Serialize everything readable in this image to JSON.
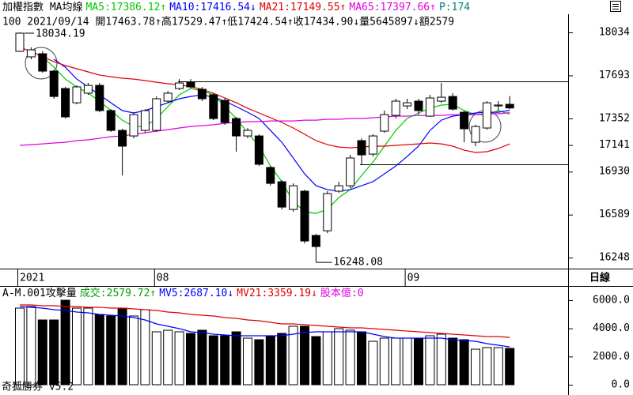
{
  "chart_data": [
    {
      "type": "candlestick",
      "title": "加權指數 MA均線",
      "info": "100 2021/09/14 開17463.78↑高17529.47↑低17424.54↑收17434.90↓量5645897↓額2579",
      "price_label": "P:174",
      "period": "日線",
      "categories": [
        "2021",
        null,
        null,
        null,
        null,
        null,
        null,
        null,
        null,
        null,
        null,
        null,
        "08",
        null,
        null,
        null,
        null,
        null,
        null,
        null,
        null,
        null,
        null,
        null,
        null,
        null,
        null,
        null,
        null,
        null,
        null,
        null,
        null,
        null,
        "09",
        null,
        null,
        null,
        null,
        null,
        null,
        null,
        null,
        null
      ],
      "open": [
        17884,
        17840,
        17865,
        17727,
        17589,
        17476,
        17552,
        17614,
        17414,
        17257,
        17213,
        17257,
        17257,
        17489,
        17589,
        17639,
        17583,
        17539,
        17495,
        17351,
        17213,
        17213,
        16963,
        16850,
        16630,
        16775,
        16424,
        16461,
        16775,
        16818,
        17176,
        17069,
        17251,
        17376,
        17451,
        17489,
        17370,
        17489,
        17526,
        17401,
        17163,
        17276,
        17451,
        17463.78
      ],
      "high": [
        18034.19,
        17915,
        17884,
        17740,
        17602,
        17614,
        17633,
        17633,
        17426,
        17270,
        17401,
        17426,
        17526,
        17570,
        17664,
        17664,
        17602,
        17552,
        17514,
        17364,
        17276,
        17226,
        16975,
        16862,
        16837,
        16787,
        16436,
        16775,
        16850,
        17063,
        17194,
        17226,
        17414,
        17508,
        17508,
        17508,
        17539,
        17633,
        17552,
        17414,
        17301,
        17489,
        17489,
        17529.47
      ],
      "low": [
        17878,
        17821,
        17714,
        17508,
        17351,
        17464,
        17539,
        17401,
        17245,
        16900,
        17194,
        17238,
        17245,
        17476,
        17576,
        17589,
        17489,
        17338,
        17301,
        17088,
        17194,
        16975,
        16818,
        16630,
        16612,
        16361,
        16248.08,
        16442,
        16762,
        16800,
        16988,
        17050,
        17238,
        17351,
        17426,
        17382,
        17364,
        17476,
        17414,
        17163,
        17132,
        17263,
        17414,
        17424.54
      ],
      "close": [
        18028,
        17896,
        17727,
        17526,
        17364,
        17602,
        17614,
        17414,
        17257,
        17132,
        17382,
        17414,
        17508,
        17552,
        17633,
        17602,
        17508,
        17351,
        17320,
        17213,
        17257,
        16988,
        16837,
        16649,
        16818,
        16380,
        16336,
        16756,
        16818,
        17038,
        17063,
        17213,
        17382,
        17489,
        17476,
        17414,
        17514,
        17520,
        17426,
        17270,
        17288,
        17476,
        17458,
        17434.9
      ],
      "up_color": "#ffffff",
      "down_color": "#000000",
      "series": [
        {
          "name": "MA5:17386.12↑",
          "color": "#00c800",
          "values": [
            null,
            17884,
            17840,
            17758,
            17664,
            17602,
            17552,
            17489,
            17414,
            17338,
            17288,
            17288,
            17351,
            17445,
            17539,
            17589,
            17570,
            17539,
            17445,
            17351,
            17238,
            17132,
            16975,
            16850,
            16693,
            16612,
            16599,
            16630,
            16724,
            16787,
            16900,
            17006,
            17132,
            17257,
            17351,
            17395,
            17432,
            17458,
            17464,
            17414,
            17382,
            17382,
            17414,
            17386.12
          ]
        },
        {
          "name": "MA10:17416.54↓",
          "color": "#0000ff",
          "values": [
            null,
            null,
            null,
            17821,
            17758,
            17664,
            17602,
            17539,
            17476,
            17414,
            17395,
            17414,
            17445,
            17476,
            17508,
            17526,
            17539,
            17520,
            17489,
            17445,
            17401,
            17351,
            17257,
            17163,
            17038,
            16912,
            16818,
            16787,
            16775,
            16787,
            16818,
            16850,
            16912,
            16975,
            17050,
            17132,
            17257,
            17338,
            17370,
            17382,
            17395,
            17401,
            17401,
            17416.54
          ]
        },
        {
          "name": "MA21:17149.55↑",
          "color": "#e00000",
          "values": [
            17915,
            17884,
            17840,
            17802,
            17771,
            17746,
            17721,
            17696,
            17683,
            17671,
            17664,
            17652,
            17639,
            17627,
            17620,
            17602,
            17583,
            17552,
            17514,
            17476,
            17432,
            17395,
            17357,
            17320,
            17276,
            17226,
            17176,
            17144,
            17125,
            17119,
            17125,
            17132,
            17132,
            17138,
            17144,
            17150,
            17157,
            17150,
            17132,
            17100,
            17082,
            17088,
            17113,
            17149.55
          ]
        },
        {
          "name": "MA65:17397.66↑",
          "color": "#e000e0",
          "values": [
            17138,
            17144,
            17150,
            17157,
            17163,
            17176,
            17182,
            17194,
            17207,
            17213,
            17226,
            17238,
            17251,
            17263,
            17276,
            17288,
            17295,
            17301,
            17314,
            17320,
            17326,
            17326,
            17332,
            17332,
            17332,
            17338,
            17338,
            17345,
            17345,
            17351,
            17351,
            17357,
            17364,
            17370,
            17370,
            17376,
            17376,
            17376,
            17382,
            17382,
            17382,
            17389,
            17389,
            17397.66
          ]
        }
      ],
      "annotations": [
        "18034.19",
        "16248.08"
      ],
      "ylim": [
        16161,
        18291
      ],
      "yticks": [
        18034,
        17693,
        17352,
        17141,
        16930,
        16589,
        16248
      ],
      "price_color": "#008080"
    },
    {
      "type": "bar",
      "title": "A-M.001攻擊量",
      "value_legend": "成交:2579.72↑",
      "legend_color": "#00a000",
      "share_label": "股本億:0",
      "share_color": "#e000e0",
      "values": [
        5439,
        5551,
        4598,
        4598,
        6000,
        5439,
        5439,
        4990,
        4878,
        5439,
        4878,
        5327,
        3757,
        3869,
        3757,
        3645,
        3869,
        3476,
        3476,
        3757,
        3308,
        3196,
        3476,
        3645,
        4149,
        4149,
        3420,
        3757,
        3981,
        3869,
        3757,
        3084,
        3308,
        3308,
        3308,
        3308,
        3476,
        3588,
        3308,
        3196,
        2523,
        2635,
        2635,
        2579.72
      ],
      "series": [
        {
          "name": "MV5:2687.10↓",
          "color": "#0000ff",
          "values": [
            5551,
            5495,
            5439,
            5327,
            5271,
            5158,
            5102,
            4990,
            4934,
            4878,
            4766,
            4598,
            4317,
            4149,
            3981,
            3757,
            3701,
            3588,
            3532,
            3476,
            3476,
            3476,
            3476,
            3476,
            3588,
            3701,
            3757,
            3757,
            3757,
            3757,
            3757,
            3588,
            3420,
            3308,
            3308,
            3308,
            3308,
            3308,
            3196,
            3140,
            3084,
            2916,
            2804,
            2687.1
          ]
        },
        {
          "name": "MV21:3359.19↓",
          "color": "#e00000",
          "values": [
            5663,
            5663,
            5607,
            5607,
            5551,
            5551,
            5495,
            5495,
            5439,
            5439,
            5383,
            5327,
            5271,
            5158,
            5102,
            4990,
            4934,
            4878,
            4766,
            4710,
            4598,
            4542,
            4430,
            4317,
            4317,
            4261,
            4205,
            4149,
            4093,
            4037,
            4037,
            3981,
            3925,
            3869,
            3813,
            3757,
            3701,
            3645,
            3588,
            3532,
            3476,
            3420,
            3420,
            3359.19
          ]
        }
      ],
      "ylim": [
        -561,
        6449
      ],
      "yticks": [
        {
          "value": 6000,
          "label": "6000.0"
        },
        {
          "value": 4000,
          "label": "4000.0"
        },
        {
          "value": 2000,
          "label": "2000.0"
        },
        {
          "value": 0,
          "label": "0.0"
        }
      ]
    }
  ],
  "footer": "奇狐勝券 v5.2"
}
